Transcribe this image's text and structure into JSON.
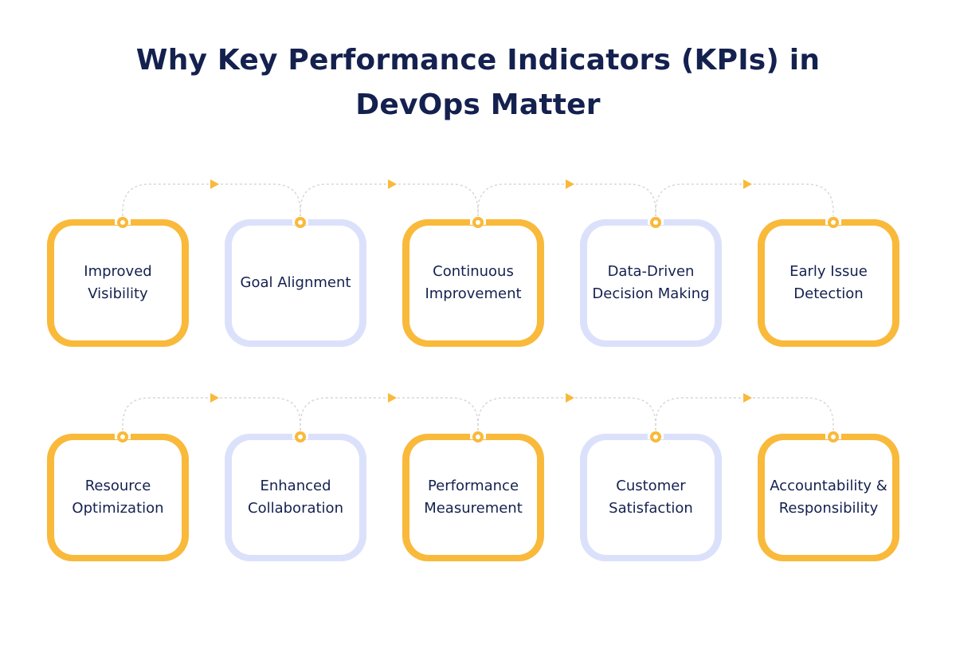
{
  "title": {
    "line1": "Why Key Performance Indicators (KPIs) in",
    "line2": "DevOps Matter"
  },
  "colors": {
    "accent_yellow": "#f9b93a",
    "accent_blue": "#dce1fb",
    "text_navy": "#14214f",
    "connector": "#d7d7d7"
  },
  "row1": [
    {
      "label": "Improved Visibility",
      "lines": [
        "Improved",
        "Visibility"
      ],
      "style": "yellow"
    },
    {
      "label": "Goal Alignment",
      "lines": [
        "Goal Alignment"
      ],
      "style": "blue"
    },
    {
      "label": "Continuous Improvement",
      "lines": [
        "Continuous",
        "Improvement"
      ],
      "style": "yellow"
    },
    {
      "label": "Data-Driven Decision Making",
      "lines": [
        "Data-Driven",
        "Decision Making"
      ],
      "style": "blue"
    },
    {
      "label": "Early Issue Detection",
      "lines": [
        "Early Issue",
        "Detection"
      ],
      "style": "yellow"
    }
  ],
  "row2": [
    {
      "label": "Resource Optimization",
      "lines": [
        "Resource",
        "Optimization"
      ],
      "style": "yellow"
    },
    {
      "label": "Enhanced Collaboration",
      "lines": [
        "Enhanced",
        "Collaboration"
      ],
      "style": "blue"
    },
    {
      "label": "Performance Measurement",
      "lines": [
        "Performance",
        "Measurement"
      ],
      "style": "yellow"
    },
    {
      "label": "Customer Satisfaction",
      "lines": [
        "Customer",
        "Satisfaction"
      ],
      "style": "blue"
    },
    {
      "label": "Accountability & Responsibility",
      "lines": [
        "Accountability &",
        "Responsibility"
      ],
      "style": "yellow"
    }
  ]
}
